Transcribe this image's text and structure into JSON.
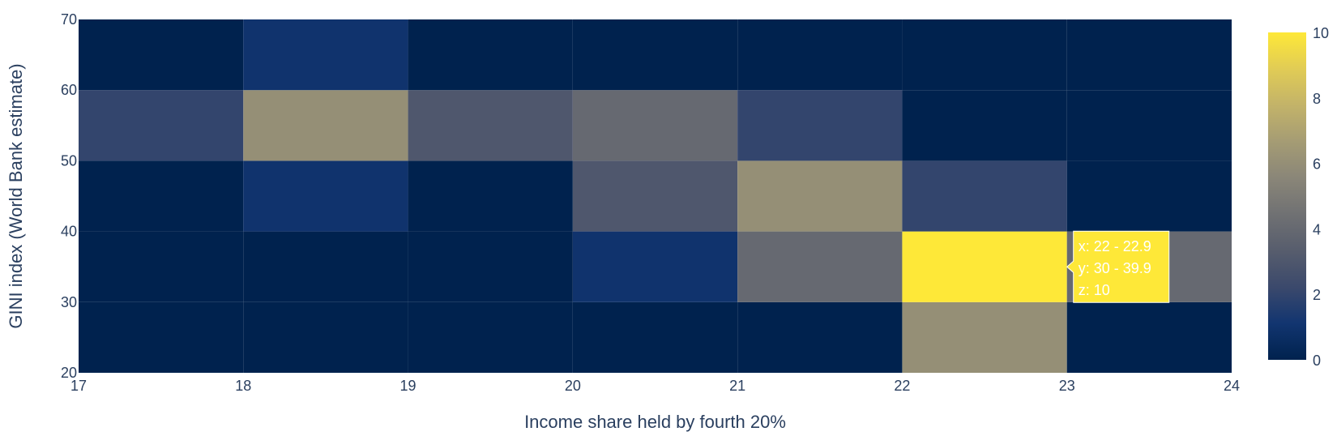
{
  "chart_data": {
    "type": "heatmap",
    "title": "",
    "xlabel": "Income share held by fourth 20%",
    "ylabel": "GINI index (World Bank estimate)",
    "x_bins": [
      17,
      18,
      19,
      20,
      21,
      22,
      23,
      24
    ],
    "y_bins": [
      20,
      30,
      40,
      50,
      60,
      70
    ],
    "x_ticks": [
      "17",
      "18",
      "19",
      "20",
      "21",
      "22",
      "23",
      "24"
    ],
    "y_ticks": [
      "20",
      "30",
      "40",
      "50",
      "60",
      "70"
    ],
    "xlim": [
      17,
      24
    ],
    "ylim": [
      20,
      70
    ],
    "z": [
      [
        0,
        0,
        0,
        0,
        0,
        6,
        0
      ],
      [
        0,
        0,
        0,
        1,
        4,
        10,
        4
      ],
      [
        0,
        1,
        0,
        3,
        6,
        2,
        0
      ],
      [
        2,
        6,
        3,
        4,
        2,
        0,
        0
      ],
      [
        0,
        1,
        0,
        0,
        0,
        0,
        0
      ]
    ],
    "zlim": [
      0,
      10
    ],
    "colorscale": "cividis",
    "colorscale_stops": [
      "#00224e",
      "#123570",
      "#3b496c",
      "#575d6d",
      "#707173",
      "#8a8678",
      "#a59c74",
      "#c3b369",
      "#e1cc55",
      "#fee838"
    ],
    "colorbar_ticks": [
      "0",
      "2",
      "4",
      "6",
      "8",
      "10"
    ],
    "colorbar_values": [
      0,
      2,
      4,
      6,
      8,
      10
    ],
    "grid": false,
    "hover": {
      "x_text": "x: 22 - 22.9",
      "y_text": "y: 30 - 39.9",
      "z_text": "z: 10",
      "x_index": 5,
      "y_index": 1
    }
  }
}
